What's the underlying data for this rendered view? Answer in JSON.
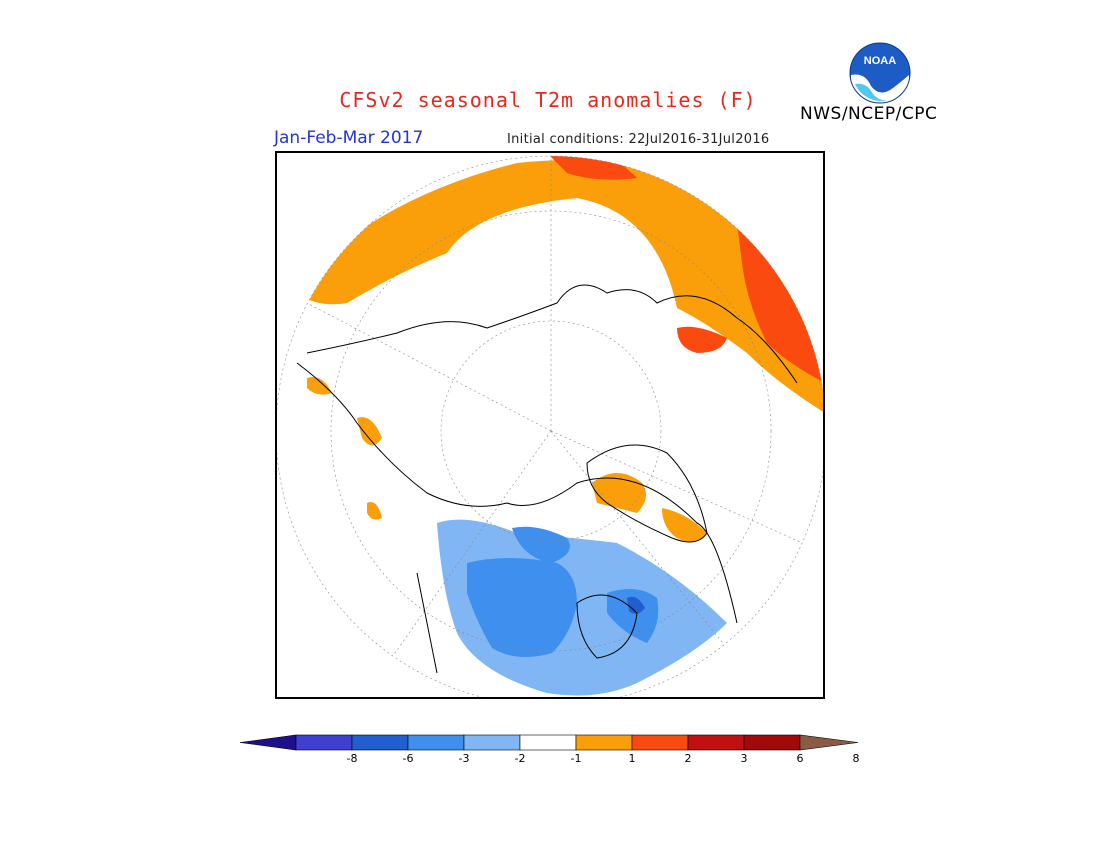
{
  "title": "CFSv2 seasonal T2m anomalies (F)",
  "agency": "NWS/NCEP/CPC",
  "logo_text": "NOAA",
  "season": "Jan-Feb-Mar 2017",
  "initial_conditions": "Initial conditions: 22Jul2016-31Jul2016",
  "legend": {
    "bins": [
      {
        "range": "< -8",
        "color": "#1e0f8f"
      },
      {
        "range": "-8 to -6",
        "color": "#3f3fd2"
      },
      {
        "range": "-6 to -3",
        "color": "#1f5fcf"
      },
      {
        "range": "-3 to -2",
        "color": "#3f8fee"
      },
      {
        "range": "-2 to -1",
        "color": "#7fb6f3"
      },
      {
        "range": "-1 to 1",
        "color": "#ffffff"
      },
      {
        "range": "1 to 2",
        "color": "#fa9e0a"
      },
      {
        "range": "2 to 3",
        "color": "#fa4a0f"
      },
      {
        "range": "3 to 6",
        "color": "#c01010"
      },
      {
        "range": "6 to 8",
        "color": "#a00a0a"
      },
      {
        "range": "> 8",
        "color": "#c8a08c"
      }
    ],
    "tick_labels": [
      "-8",
      "-6",
      "-3",
      "-2",
      "-1",
      "1",
      "2",
      "3",
      "6",
      "8"
    ]
  },
  "map": {
    "projection": "north polar stereographic",
    "regions": [
      {
        "name": "Eurasia north (Siberia)",
        "anomaly_class": "1 to 2"
      },
      {
        "name": "Northeastern Asia / Far East",
        "anomaly_class": "2 to 3"
      },
      {
        "name": "Canada",
        "anomaly_class": "-3 to -2"
      },
      {
        "name": "Canadian margins / Alaska",
        "anomaly_class": "-2 to -1"
      },
      {
        "name": "Hudson Bay area",
        "anomaly_class": "-6 to -3"
      },
      {
        "name": "Arctic Ocean",
        "anomaly_class": "-1 to 1"
      }
    ]
  }
}
